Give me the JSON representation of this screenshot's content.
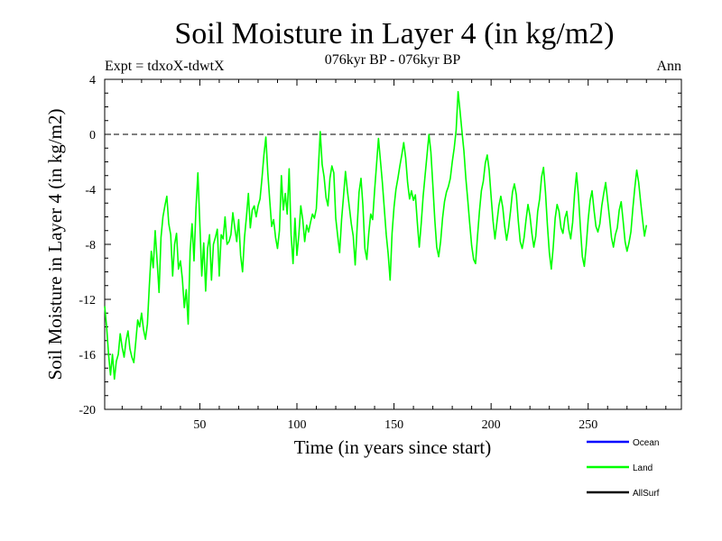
{
  "chart_data": {
    "type": "line",
    "title": "Soil Moisture in Layer 4 (in kg/m2)",
    "subtitle_left": "Expt = tdxoX-tdwtX",
    "subtitle_center": "076kyr BP - 076kyr BP",
    "subtitle_right": "Ann",
    "xlabel": "Time (in years since start)",
    "ylabel": "Soil Moisture in Layer 4 (in kg/m2)",
    "xlim": [
      1,
      298
    ],
    "ylim": [
      -20,
      4
    ],
    "x_ticks": [
      50,
      100,
      150,
      200,
      250
    ],
    "x_tick_labels": [
      "50",
      "100",
      "150",
      "200",
      "250"
    ],
    "y_ticks": [
      -20,
      -16,
      -12,
      -8,
      -4,
      0,
      4
    ],
    "y_tick_labels": [
      "-20",
      "-16",
      "-12",
      "-8",
      "-4",
      "0",
      "4"
    ],
    "reference_line": 0,
    "legend_position": "bottom-right",
    "series": [
      {
        "name": "Ocean",
        "color": "#0000ff",
        "values": []
      },
      {
        "name": "Land",
        "color": "#00ff00",
        "x_start": 1,
        "x_step": 1,
        "values": [
          -12.5,
          -14,
          -16,
          -17.5,
          -16,
          -17.8,
          -16.5,
          -16,
          -14.5,
          -15.5,
          -16.2,
          -15,
          -14.3,
          -15.6,
          -16.2,
          -16.6,
          -15.1,
          -13.5,
          -14,
          -13,
          -14.2,
          -14.9,
          -13.8,
          -11,
          -8.5,
          -9.7,
          -7,
          -9.2,
          -11.5,
          -7.5,
          -6,
          -5.2,
          -4.5,
          -6.5,
          -7.3,
          -10.3,
          -8,
          -7.2,
          -9.8,
          -9.2,
          -10.5,
          -12.6,
          -11.3,
          -13.8,
          -8.5,
          -6.5,
          -9.2,
          -5.4,
          -2.8,
          -6.5,
          -10.3,
          -7.9,
          -11.4,
          -8.3,
          -7.3,
          -10.6,
          -8,
          -7.5,
          -6.9,
          -10.3,
          -7.3,
          -7.6,
          -6,
          -8,
          -7.8,
          -7.3,
          -5.7,
          -6.8,
          -7.8,
          -6.2,
          -8.8,
          -10,
          -7.5,
          -6,
          -4.3,
          -6.8,
          -5.5,
          -5.2,
          -6,
          -5.2,
          -4.7,
          -3.2,
          -1.5,
          -0.2,
          -2.8,
          -4.8,
          -6.7,
          -6.2,
          -7.5,
          -8.3,
          -7,
          -3,
          -5.5,
          -4.3,
          -5.8,
          -2.5,
          -7.3,
          -9.4,
          -6.1,
          -8.8,
          -7.3,
          -5.2,
          -6.2,
          -7.8,
          -6.6,
          -7.1,
          -6.4,
          -5.8,
          -6.1,
          -5.4,
          -2.6,
          0.2,
          -2.2,
          -3.1,
          -4.6,
          -5.2,
          -3.2,
          -2.3,
          -2.8,
          -6.1,
          -7.4,
          -8.6,
          -6.2,
          -4.5,
          -2.7,
          -4.1,
          -5.3,
          -6.5,
          -7.4,
          -9.5,
          -6.8,
          -4.2,
          -3.2,
          -5.2,
          -8.3,
          -9.1,
          -7.2,
          -5.8,
          -6.2,
          -4.1,
          -2.2,
          -0.3,
          -1.9,
          -3.5,
          -5.4,
          -7.3,
          -8.7,
          -10.6,
          -7.2,
          -5.3,
          -4,
          -3.2,
          -2.3,
          -1.5,
          -0.6,
          -1.7,
          -3.5,
          -4.7,
          -4.1,
          -4.8,
          -4.4,
          -6.4,
          -8.2,
          -6.5,
          -4.5,
          -3,
          -1.5,
          0,
          -1.3,
          -3.7,
          -6.2,
          -8.2,
          -8.9,
          -7.8,
          -6.1,
          -4.9,
          -4.2,
          -3.8,
          -3.2,
          -2,
          -1,
          0.3,
          3.1,
          1.7,
          0.2,
          -1.2,
          -3.2,
          -4.8,
          -6.5,
          -8.1,
          -9.1,
          -9.4,
          -7.4,
          -5.6,
          -4.1,
          -3.4,
          -2.1,
          -1.5,
          -2.6,
          -4.5,
          -6.3,
          -7.6,
          -6.4,
          -5.2,
          -4.5,
          -5.3,
          -6.7,
          -7.7,
          -6.8,
          -5.6,
          -4.2,
          -3.6,
          -4.4,
          -6.3,
          -7.8,
          -8.3,
          -7.5,
          -6.2,
          -5.1,
          -5.9,
          -7.2,
          -8.2,
          -7.4,
          -5.6,
          -4.7,
          -3.1,
          -2.4,
          -4.2,
          -6.6,
          -8.6,
          -9.8,
          -8.2,
          -6.1,
          -5.1,
          -5.6,
          -6.8,
          -7.2,
          -6.1,
          -5.6,
          -6.9,
          -7.6,
          -6.4,
          -4.3,
          -2.8,
          -4.5,
          -6.8,
          -8.9,
          -9.6,
          -8.1,
          -6.2,
          -4.8,
          -4.1,
          -5.5,
          -6.7,
          -7.1,
          -6.5,
          -5.2,
          -4.3,
          -3.5,
          -4.8,
          -6.1,
          -7.5,
          -8.2,
          -7.3,
          -6.8,
          -5.5,
          -4.9,
          -6.3,
          -7.8,
          -8.5,
          -7.9,
          -7.1,
          -5.4,
          -3.9,
          -2.6,
          -3.5,
          -4.9,
          -6.2,
          -7.4,
          -6.6
        ]
      },
      {
        "name": "AllSurf",
        "color": "#000000",
        "values": []
      }
    ]
  }
}
